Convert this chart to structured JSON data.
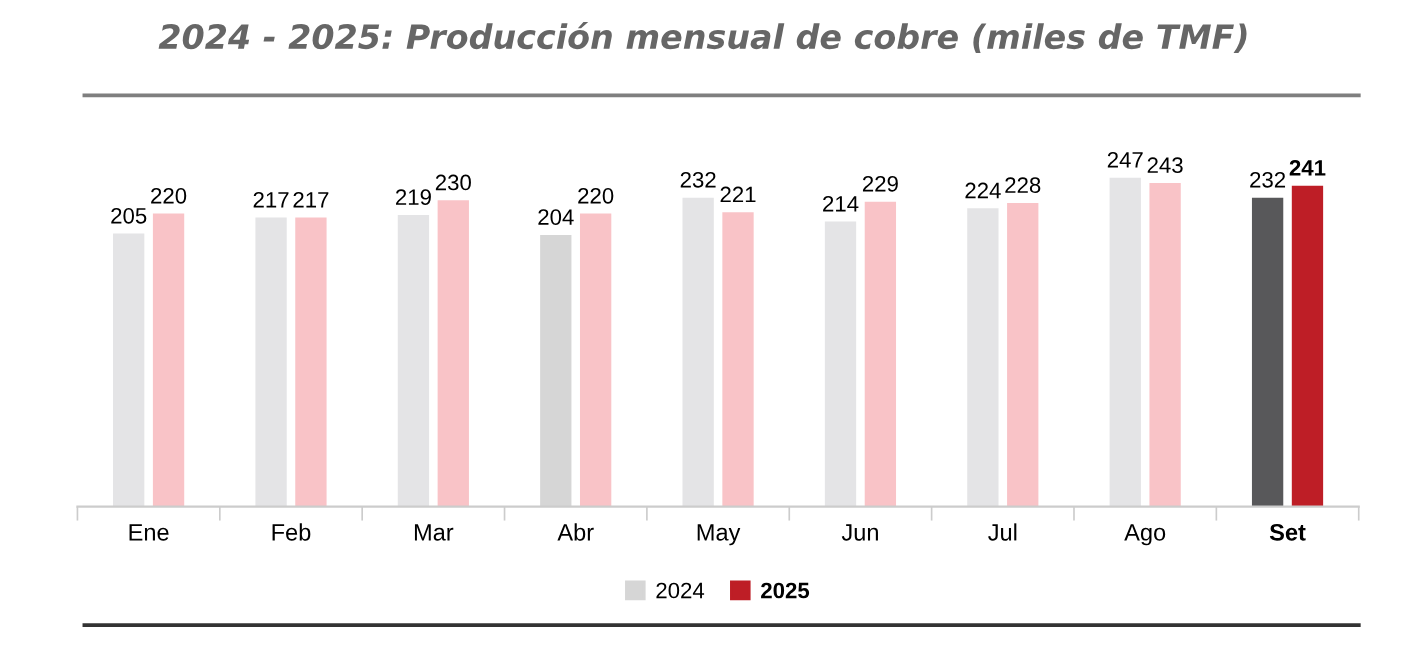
{
  "chart_data": {
    "type": "bar",
    "title": "2024 - 2025: Producción mensual de cobre (miles de TMF)",
    "categories": [
      "Ene",
      "Feb",
      "Mar",
      "Abr",
      "May",
      "Jun",
      "Jul",
      "Ago",
      "Set"
    ],
    "series": [
      {
        "name": "2024",
        "color": "#d6d6d6",
        "colors": [
          "#e4e4e6",
          "#e4e4e6",
          "#e4e4e6",
          "#d6d6d6",
          "#e4e4e6",
          "#e4e4e6",
          "#e4e4e6",
          "#e4e4e6",
          "#58585a"
        ],
        "values": [
          205,
          217,
          219,
          204,
          232,
          214,
          224,
          247,
          232
        ]
      },
      {
        "name": "2025",
        "color": "#be1e26",
        "colors": [
          "#f9c3c7",
          "#f9c3c7",
          "#f9c3c7",
          "#f9c3c7",
          "#f9c3c7",
          "#f9c3c7",
          "#f9c3c7",
          "#f9c3c7",
          "#be1e26"
        ],
        "values": [
          220,
          217,
          230,
          220,
          221,
          229,
          228,
          243,
          241
        ]
      }
    ],
    "tick_labels": "x",
    "data_labels": true,
    "legend": "bottom",
    "grid": false
  }
}
